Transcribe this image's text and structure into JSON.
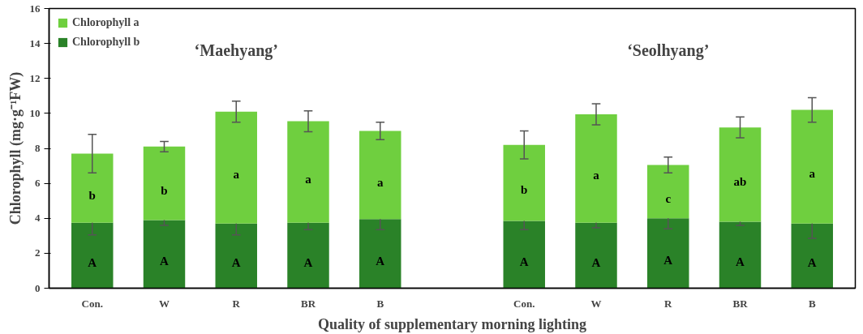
{
  "chart_data": {
    "type": "bar",
    "stacked": true,
    "xlabel": "Quality of supplementary morning lighting",
    "ylabel": "Chlorophyll (mg·g⁻¹FW)",
    "categories": [
      "Con.",
      "W",
      "R",
      "BR",
      "B",
      null,
      "Con.",
      "W",
      "R",
      "BR",
      "B"
    ],
    "series": [
      {
        "name": "Chlorophyll b",
        "color": "#2a8228",
        "values": [
          3.75,
          3.9,
          3.7,
          3.75,
          3.95,
          null,
          3.85,
          3.75,
          4.0,
          3.8,
          3.7
        ],
        "errors": [
          0.7,
          0.3,
          0.65,
          0.4,
          0.6,
          null,
          0.5,
          0.3,
          0.6,
          0.2,
          0.85
        ],
        "value_labels": [
          "A",
          "A",
          "A",
          "A",
          "A",
          null,
          "A",
          "A",
          "A",
          "A",
          "A"
        ]
      },
      {
        "name": "Chlorophyll a",
        "color": "#6fcf3f",
        "values": [
          3.95,
          4.2,
          6.4,
          5.8,
          5.05,
          null,
          4.35,
          6.2,
          3.05,
          5.4,
          6.5
        ],
        "errors": [
          1.1,
          0.3,
          0.6,
          0.6,
          0.5,
          null,
          0.8,
          0.6,
          0.45,
          0.6,
          0.7
        ],
        "value_labels": [
          "b",
          "b",
          "a",
          "a",
          "a",
          null,
          "b",
          "a",
          "c",
          "ab",
          "a"
        ]
      }
    ],
    "ylim": [
      0,
      16
    ],
    "yticks": [
      0,
      2,
      4,
      6,
      8,
      10,
      12,
      14,
      16
    ],
    "grid": false,
    "legend": "top left",
    "annotations": [
      "‘Maehyang’",
      "‘Seolhyang’"
    ]
  }
}
